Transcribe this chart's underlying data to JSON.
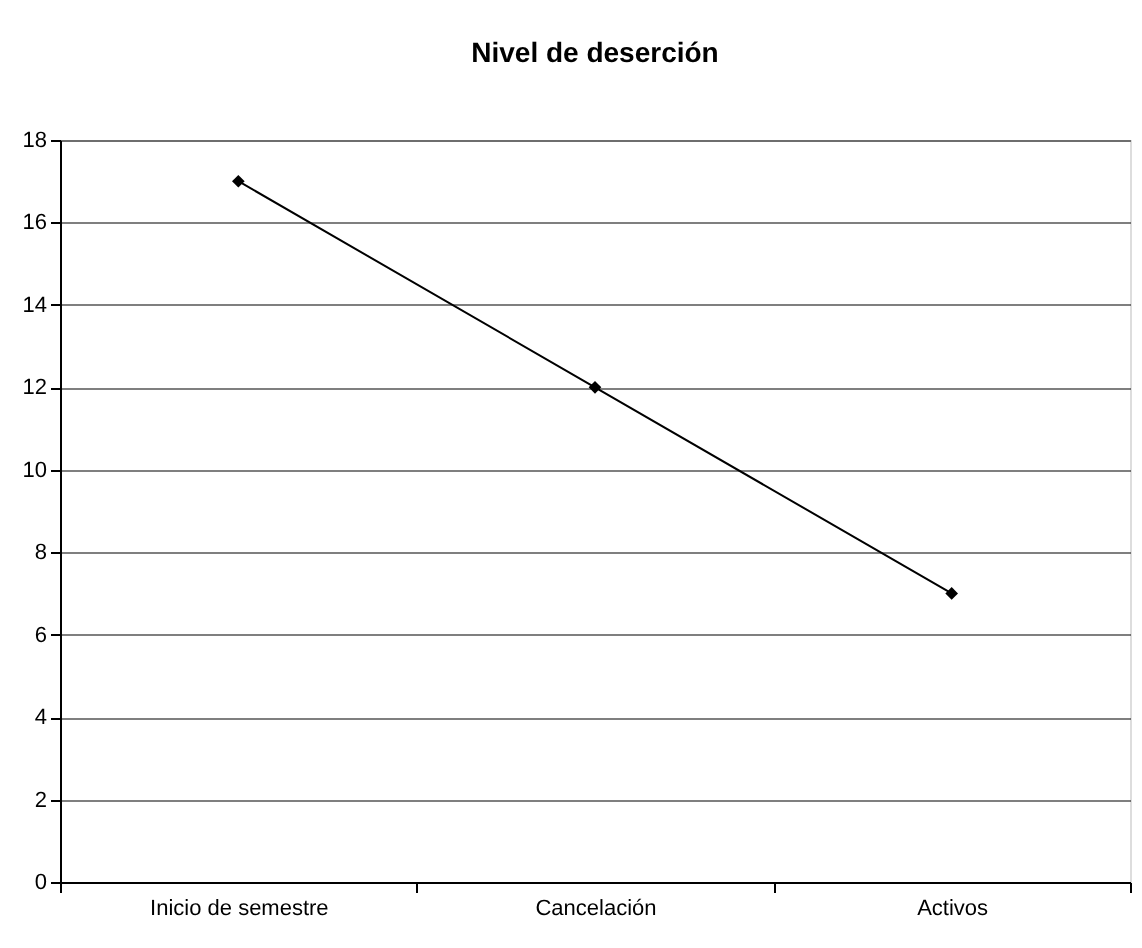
{
  "chart_data": {
    "type": "line",
    "title": "Nivel de deserción",
    "categories": [
      "Inicio de semestre",
      "Cancelación",
      "Activos"
    ],
    "series": [
      {
        "color": "#000000",
        "values": [
          17,
          12,
          7
        ]
      }
    ],
    "ylim": [
      0,
      18
    ],
    "yticks": [
      0,
      2,
      4,
      6,
      8,
      10,
      12,
      14,
      16,
      18
    ],
    "grid": "y",
    "marker": "diamond",
    "line_style": "solid"
  }
}
